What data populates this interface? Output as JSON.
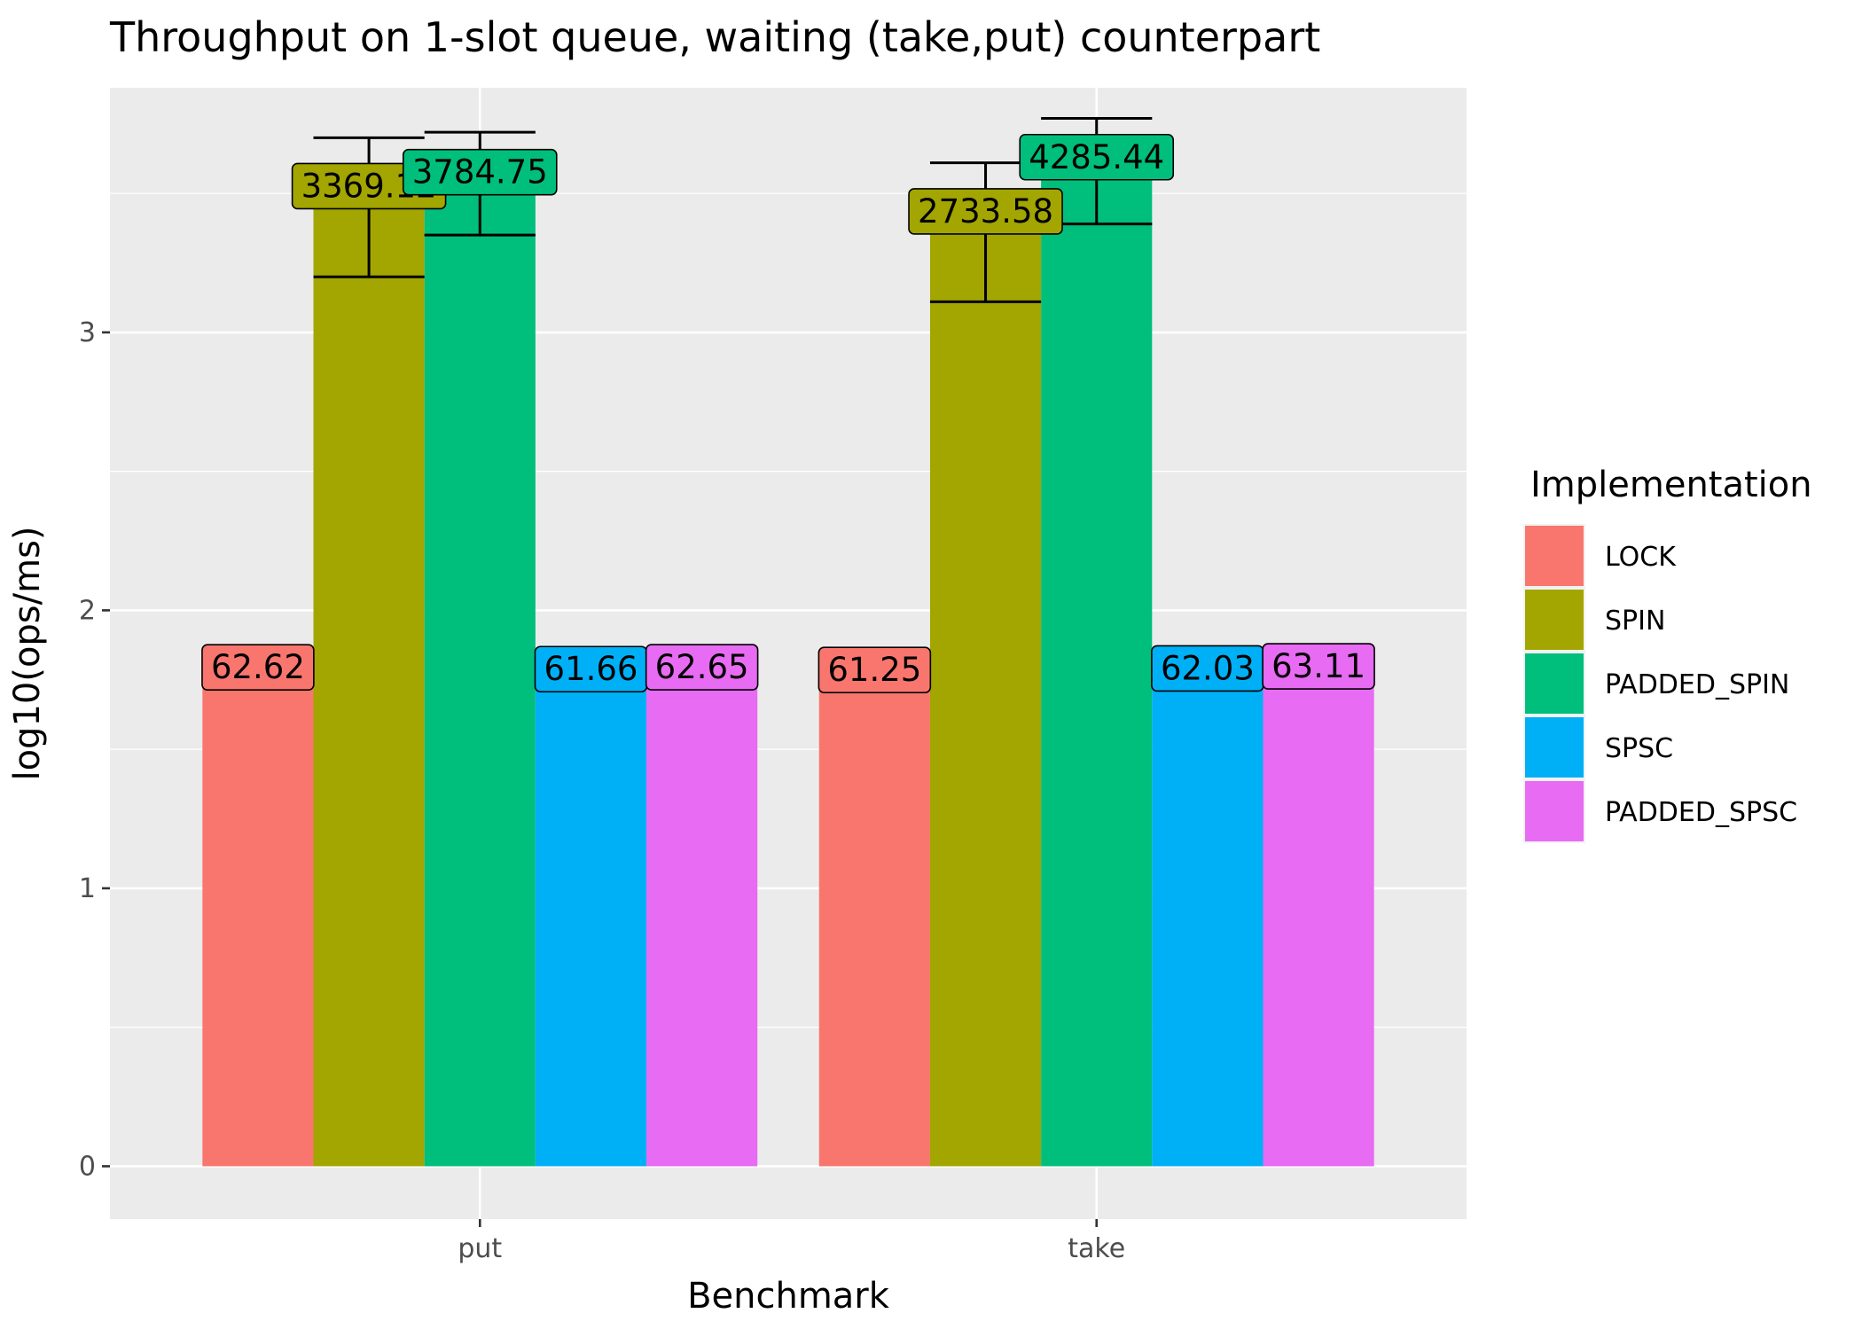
{
  "chart_data": {
    "type": "bar",
    "title": "Throughput on 1-slot queue, waiting (take,put) counterpart",
    "xlabel": "Benchmark",
    "ylabel": "log10(ops/ms)",
    "categories": [
      "put",
      "take"
    ],
    "ylim": [
      -0.19,
      3.88
    ],
    "yticks": [
      0,
      1,
      2,
      3
    ],
    "grid": true,
    "legend_title": "Implementation",
    "legend_position": "right",
    "series": [
      {
        "name": "LOCK",
        "color": "#F8766D",
        "values": [
          1.7967,
          1.7871
        ],
        "labels": [
          "62.62",
          "61.25"
        ],
        "error": null
      },
      {
        "name": "SPIN",
        "color": "#A3A500",
        "values": [
          3.5276,
          3.4368
        ],
        "labels": [
          "3369.12",
          "2733.58"
        ],
        "error": [
          [
            3.2,
            3.7
          ],
          [
            3.11,
            3.61
          ]
        ]
      },
      {
        "name": "PADDED_SPIN",
        "color": "#00BF7D",
        "values": [
          3.5781,
          3.632
        ],
        "labels": [
          "3784.75",
          "4285.44"
        ],
        "error": [
          [
            3.35,
            3.72
          ],
          [
            3.39,
            3.77
          ]
        ]
      },
      {
        "name": "SPSC",
        "color": "#00B0F6",
        "values": [
          1.79,
          1.7926
        ],
        "labels": [
          "61.66",
          "62.03"
        ],
        "error": null
      },
      {
        "name": "PADDED_SPSC",
        "color": "#E76BF3",
        "values": [
          1.7969,
          1.8001
        ],
        "labels": [
          "62.65",
          "63.11"
        ],
        "error": null
      }
    ]
  }
}
